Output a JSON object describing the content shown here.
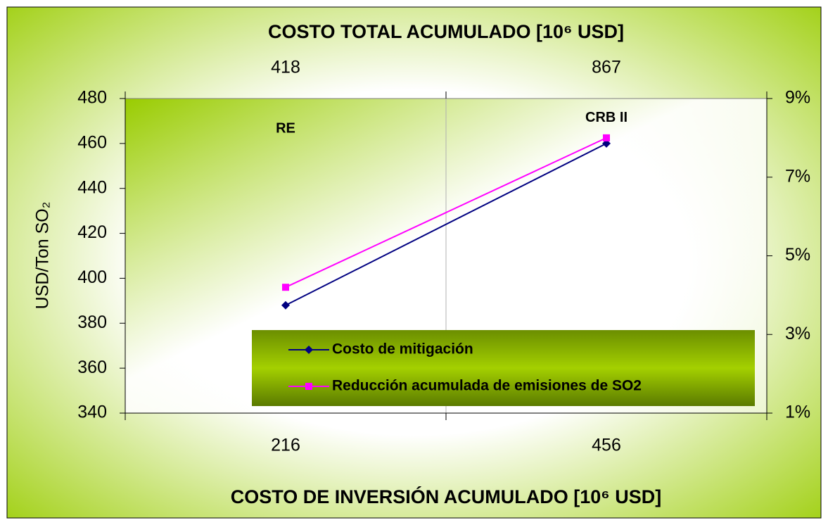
{
  "chart_data": {
    "type": "line",
    "title": "COSTO TOTAL ACUMULADO [10⁶ USD]",
    "x_label": "COSTO DE INVERSIÓN ACUMULADO [10⁶ USD]",
    "y_label": "USD/Ton SO₂",
    "categories": [
      "216",
      "456"
    ],
    "top_categories": [
      "418",
      "867"
    ],
    "point_labels": [
      "RE",
      "CRB II"
    ],
    "series": [
      {
        "name": "Costo de mitigación",
        "color": "#000080",
        "marker": "diamond",
        "values": [
          388,
          460
        ]
      },
      {
        "name": "Reducción acumulada de emisiones de SO2",
        "color": "#ff00ff",
        "marker": "square",
        "axis": "y2",
        "values": [
          4.2,
          8.0
        ]
      }
    ],
    "ylim": [
      340,
      480
    ],
    "yticks": [
      340,
      360,
      380,
      400,
      420,
      440,
      460,
      480
    ],
    "y2lim": [
      1,
      9
    ],
    "y2ticks": [
      {
        "value": 1,
        "label": "1%"
      },
      {
        "value": 3,
        "label": "3%"
      },
      {
        "value": 5,
        "label": "5%"
      },
      {
        "value": 7,
        "label": "7%"
      },
      {
        "value": 9,
        "label": "9%"
      }
    ],
    "legend_position": "lower right"
  }
}
